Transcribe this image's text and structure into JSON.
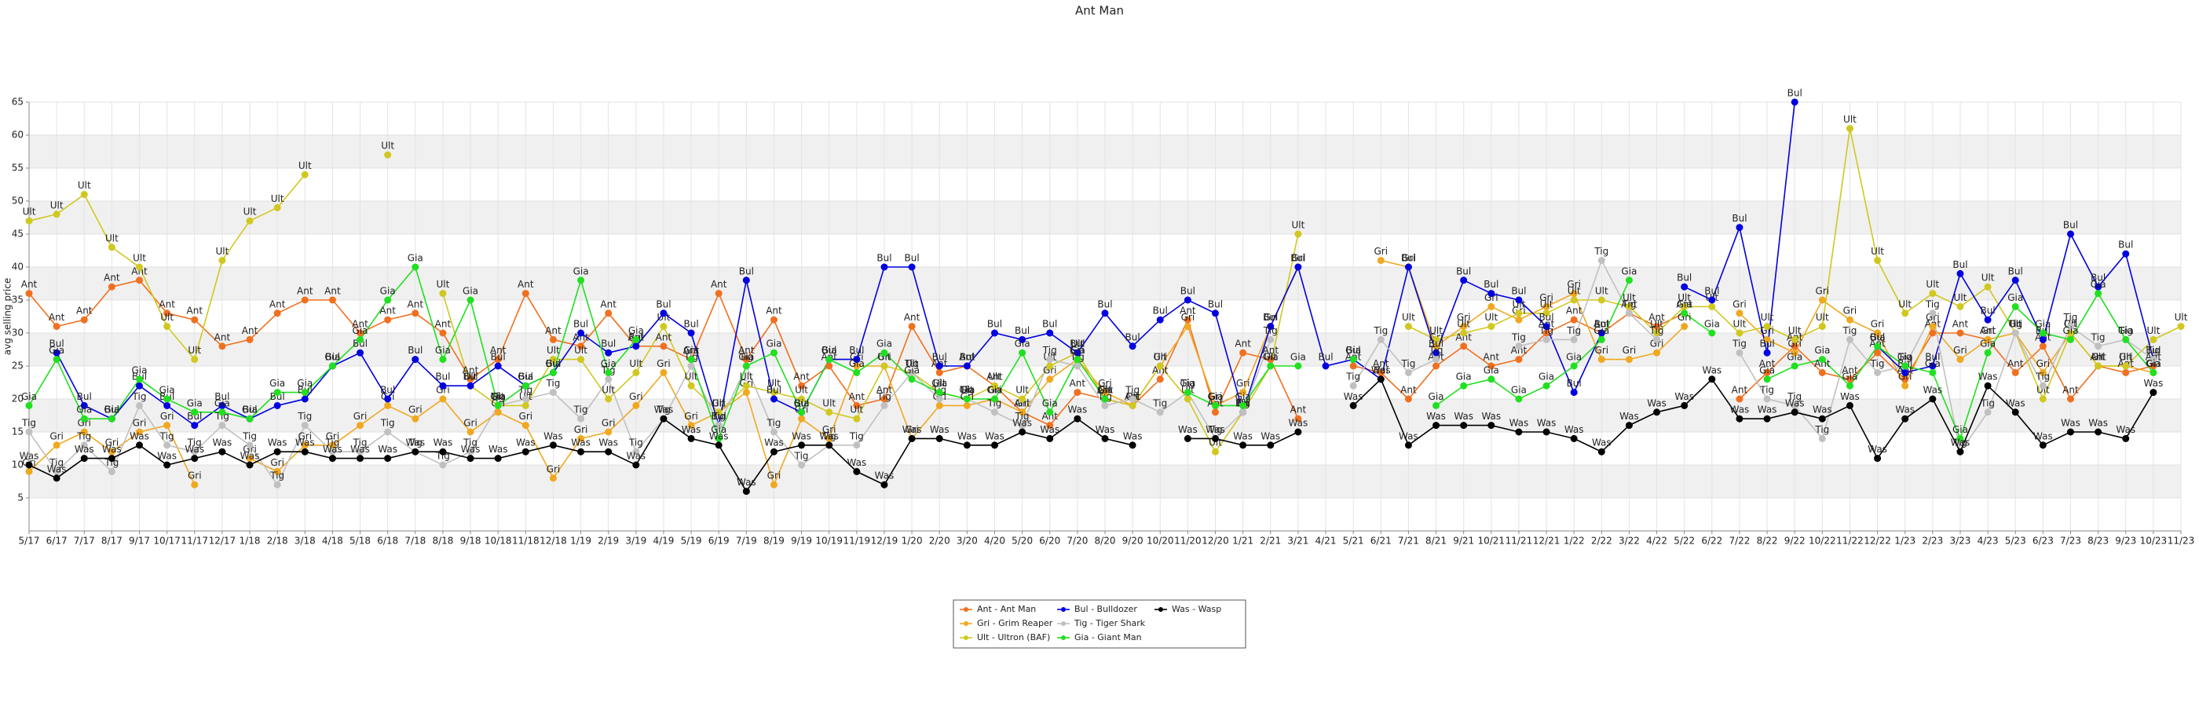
{
  "chart_data": {
    "type": "line",
    "title": "Ant Man",
    "y_label": "avg selling price",
    "categories": [
      "5/17",
      "6/17",
      "7/17",
      "8/17",
      "9/17",
      "10/17",
      "11/17",
      "12/17",
      "1/18",
      "2/18",
      "3/18",
      "4/18",
      "5/18",
      "6/18",
      "7/18",
      "8/18",
      "9/18",
      "10/18",
      "11/18",
      "12/18",
      "1/19",
      "2/19",
      "3/19",
      "4/19",
      "5/19",
      "6/19",
      "7/19",
      "8/19",
      "9/19",
      "10/19",
      "11/19",
      "12/19",
      "1/20",
      "2/20",
      "3/20",
      "4/20",
      "5/20",
      "6/20",
      "7/20",
      "8/20",
      "9/20",
      "10/20",
      "11/20",
      "12/20",
      "1/21",
      "2/21",
      "3/21",
      "4/21",
      "5/21",
      "6/21",
      "7/21",
      "8/21",
      "9/21",
      "10/21",
      "11/21",
      "12/21",
      "1/22",
      "2/22",
      "3/22",
      "4/22",
      "5/22",
      "6/22",
      "7/22",
      "8/22",
      "9/22",
      "10/22",
      "11/22",
      "12/22",
      "1/23",
      "2/23",
      "3/23",
      "4/23",
      "5/23",
      "6/23",
      "7/23",
      "8/23",
      "9/23",
      "10/23",
      "11/23"
    ],
    "ylim": [
      0,
      65
    ],
    "yticks": [
      5,
      10,
      15,
      20,
      25,
      30,
      35,
      40,
      45,
      50,
      55,
      60,
      65
    ],
    "grid": true,
    "legend": "bottom",
    "series": [
      {
        "name": "Ant - Ant Man",
        "label": "Ant",
        "color": "#f07020",
        "values": [
          36,
          31,
          32,
          37,
          38,
          33,
          32,
          28,
          29,
          33,
          35,
          35,
          30,
          32,
          33,
          30,
          23,
          26,
          36,
          29,
          28,
          33,
          28,
          28,
          26,
          36,
          26,
          32,
          22,
          25,
          19,
          20,
          31,
          24,
          25,
          22,
          18,
          16,
          21,
          20,
          19,
          23,
          32,
          18,
          27,
          26,
          17,
          null,
          25,
          24,
          20,
          25,
          28,
          25,
          26,
          30,
          32,
          30,
          33,
          31,
          33,
          null,
          20,
          24,
          28,
          24,
          23,
          27,
          23,
          30,
          30,
          29,
          24,
          28,
          20,
          25,
          24,
          25,
          null
        ]
      },
      {
        "name": "Gri - Grim Reaper",
        "label": "Gri",
        "color": "#f0a820",
        "values": [
          9,
          13,
          15,
          12,
          15,
          16,
          7,
          null,
          11,
          9,
          13,
          13,
          16,
          19,
          17,
          20,
          15,
          18,
          16,
          8,
          14,
          15,
          19,
          24,
          16,
          18,
          21,
          7,
          17,
          14,
          25,
          25,
          14,
          19,
          19,
          20,
          18,
          23,
          26,
          21,
          19,
          25,
          31,
          19,
          21,
          31,
          40,
          null,
          null,
          41,
          40,
          28,
          31,
          34,
          32,
          34,
          36,
          26,
          26,
          27,
          31,
          null,
          33,
          29,
          27,
          35,
          32,
          30,
          22,
          31,
          26,
          29,
          30,
          24,
          30,
          25,
          25,
          24,
          null
        ]
      },
      {
        "name": "Ult - Ultron (BAF)",
        "label": "Ult",
        "color": "#d0c820",
        "values": [
          47,
          48,
          51,
          43,
          40,
          31,
          26,
          41,
          47,
          49,
          54,
          null,
          null,
          57,
          null,
          36,
          22,
          19,
          19,
          26,
          26,
          20,
          24,
          31,
          22,
          18,
          22,
          21,
          20,
          18,
          17,
          25,
          24,
          21,
          20,
          22,
          20,
          25,
          27,
          20,
          19,
          25,
          20,
          12,
          18,
          25,
          45,
          null,
          null,
          null,
          31,
          29,
          30,
          31,
          33,
          33,
          35,
          35,
          34,
          30,
          34,
          34,
          30,
          31,
          29,
          31,
          61,
          41,
          33,
          36,
          34,
          37,
          30,
          20,
          30,
          25,
          25,
          29,
          31
        ]
      },
      {
        "name": "Bul - Bulldozer",
        "label": "Bul",
        "color": "#0000e0",
        "values": [
          null,
          27,
          19,
          17,
          22,
          19,
          16,
          19,
          17,
          19,
          20,
          25,
          27,
          20,
          26,
          22,
          22,
          25,
          22,
          24,
          30,
          27,
          28,
          33,
          30,
          16,
          38,
          20,
          18,
          26,
          26,
          40,
          40,
          25,
          25,
          30,
          29,
          30,
          27,
          33,
          28,
          32,
          35,
          33,
          18,
          31,
          40,
          25,
          26,
          23,
          40,
          27,
          38,
          36,
          35,
          31,
          21,
          30,
          null,
          null,
          37,
          35,
          46,
          27,
          65,
          null,
          null,
          28,
          24,
          25,
          39,
          32,
          38,
          29,
          45,
          37,
          42,
          26,
          null
        ]
      },
      {
        "name": "Tig - Tiger Shark",
        "label": "Tig",
        "color": "#c0c0c0",
        "values": [
          15,
          9,
          13,
          9,
          19,
          13,
          12,
          16,
          13,
          7,
          16,
          12,
          12,
          15,
          12,
          10,
          12,
          19,
          20,
          21,
          17,
          23,
          12,
          17,
          25,
          16,
          25,
          15,
          10,
          13,
          13,
          19,
          24,
          20,
          20,
          18,
          16,
          26,
          25,
          19,
          20,
          18,
          21,
          14,
          18,
          29,
          null,
          null,
          22,
          29,
          24,
          26,
          null,
          null,
          28,
          29,
          29,
          41,
          33,
          29,
          null,
          null,
          27,
          20,
          19,
          14,
          29,
          24,
          25,
          33,
          12,
          18,
          30,
          22,
          31,
          28,
          29,
          26,
          null
        ]
      },
      {
        "name": "Gia - Giant Man",
        "label": "Gia",
        "color": "#20e020",
        "values": [
          19,
          26,
          17,
          17,
          23,
          20,
          18,
          18,
          17,
          21,
          21,
          25,
          29,
          35,
          40,
          26,
          35,
          19,
          22,
          24,
          38,
          24,
          29,
          null,
          26,
          14,
          25,
          27,
          18,
          26,
          24,
          27,
          23,
          21,
          20,
          20,
          27,
          18,
          26,
          20,
          null,
          null,
          21,
          19,
          19,
          25,
          25,
          null,
          26,
          null,
          null,
          19,
          22,
          23,
          20,
          22,
          25,
          29,
          38,
          null,
          33,
          30,
          null,
          23,
          25,
          26,
          22,
          28,
          25,
          24,
          14,
          27,
          34,
          30,
          29,
          36,
          29,
          24,
          null
        ]
      },
      {
        "name": "Was - Wasp",
        "label": "Was",
        "color": "#000000",
        "values": [
          10,
          8,
          11,
          11,
          13,
          10,
          11,
          12,
          10,
          12,
          12,
          11,
          11,
          11,
          12,
          12,
          11,
          11,
          12,
          13,
          12,
          12,
          10,
          17,
          14,
          13,
          6,
          12,
          13,
          13,
          9,
          7,
          14,
          14,
          13,
          13,
          15,
          14,
          17,
          14,
          13,
          null,
          14,
          14,
          13,
          13,
          15,
          null,
          19,
          23,
          13,
          16,
          16,
          16,
          15,
          15,
          14,
          12,
          16,
          18,
          19,
          23,
          17,
          17,
          18,
          17,
          19,
          11,
          17,
          20,
          12,
          22,
          18,
          13,
          15,
          15,
          14,
          21,
          null
        ]
      }
    ]
  }
}
